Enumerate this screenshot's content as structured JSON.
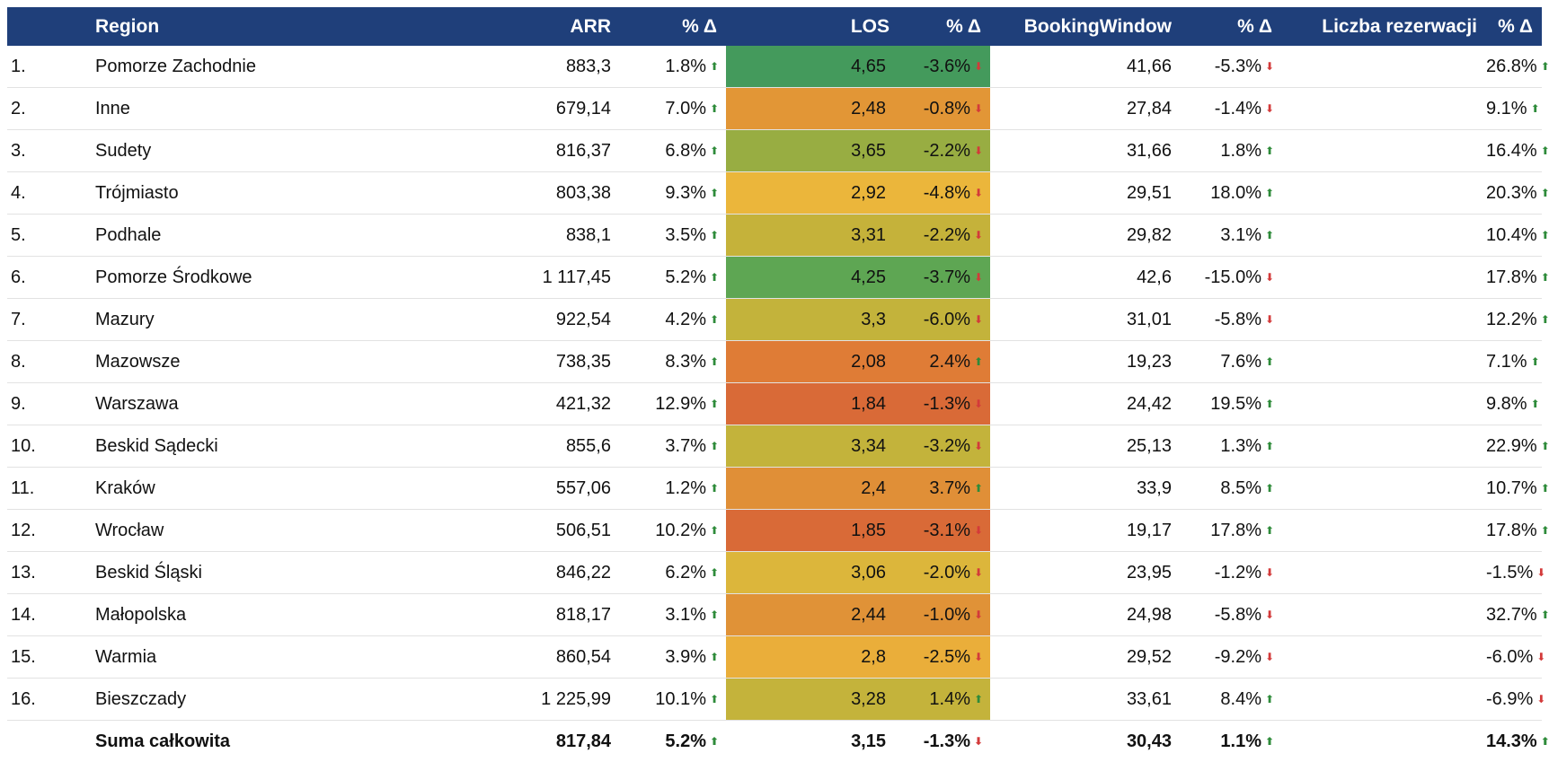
{
  "table": {
    "headers": {
      "index": "",
      "region": "Region",
      "arr": "ARR",
      "arr_delta": "% Δ",
      "los": "LOS",
      "los_delta": "% Δ",
      "booking_window": "BookingWindow",
      "bw_delta": "% Δ",
      "reservations": "Liczba rezerwacji",
      "res_delta": "% Δ"
    },
    "rows": [
      {
        "idx": "1.",
        "region": "Pomorze Zachodnie",
        "arr": "883,3",
        "arr_d": "1.8%",
        "arr_dir": "up",
        "los": "4,65",
        "los_d": "-3.6%",
        "los_dir": "down",
        "los_color": "#449a5c",
        "bw": "41,66",
        "bw_d": "-5.3%",
        "bw_dir": "down",
        "res_d": "26.8%",
        "res_dir": "up"
      },
      {
        "idx": "2.",
        "region": "Inne",
        "arr": "679,14",
        "arr_d": "7.0%",
        "arr_dir": "up",
        "los": "2,48",
        "los_d": "-0.8%",
        "los_dir": "down",
        "los_color": "#e29636",
        "bw": "27,84",
        "bw_d": "-1.4%",
        "bw_dir": "down",
        "res_d": "9.1%",
        "res_dir": "up"
      },
      {
        "idx": "3.",
        "region": "Sudety",
        "arr": "816,37",
        "arr_d": "6.8%",
        "arr_dir": "up",
        "los": "3,65",
        "los_d": "-2.2%",
        "los_dir": "down",
        "los_color": "#98ad42",
        "bw": "31,66",
        "bw_d": "1.8%",
        "bw_dir": "up",
        "res_d": "16.4%",
        "res_dir": "up"
      },
      {
        "idx": "4.",
        "region": "Trójmiasto",
        "arr": "803,38",
        "arr_d": "9.3%",
        "arr_dir": "up",
        "los": "2,92",
        "los_d": "-4.8%",
        "los_dir": "down",
        "los_color": "#ebb63b",
        "bw": "29,51",
        "bw_d": "18.0%",
        "bw_dir": "up",
        "res_d": "20.3%",
        "res_dir": "up"
      },
      {
        "idx": "5.",
        "region": "Podhale",
        "arr": "838,1",
        "arr_d": "3.5%",
        "arr_dir": "up",
        "los": "3,31",
        "los_d": "-2.2%",
        "los_dir": "down",
        "los_color": "#c5b23a",
        "bw": "29,82",
        "bw_d": "3.1%",
        "bw_dir": "up",
        "res_d": "10.4%",
        "res_dir": "up"
      },
      {
        "idx": "6.",
        "region": "Pomorze Środkowe",
        "arr": "1 117,45",
        "arr_d": "5.2%",
        "arr_dir": "up",
        "los": "4,25",
        "los_d": "-3.7%",
        "los_dir": "down",
        "los_color": "#5ea653",
        "bw": "42,6",
        "bw_d": "-15.0%",
        "bw_dir": "down",
        "res_d": "17.8%",
        "res_dir": "up"
      },
      {
        "idx": "7.",
        "region": "Mazury",
        "arr": "922,54",
        "arr_d": "4.2%",
        "arr_dir": "up",
        "los": "3,3",
        "los_d": "-6.0%",
        "los_dir": "down",
        "los_color": "#c3b33b",
        "bw": "31,01",
        "bw_d": "-5.8%",
        "bw_dir": "down",
        "res_d": "12.2%",
        "res_dir": "up"
      },
      {
        "idx": "8.",
        "region": "Mazowsze",
        "arr": "738,35",
        "arr_d": "8.3%",
        "arr_dir": "up",
        "los": "2,08",
        "los_d": "2.4%",
        "los_dir": "up",
        "los_color": "#df7c36",
        "bw": "19,23",
        "bw_d": "7.6%",
        "bw_dir": "up",
        "res_d": "7.1%",
        "res_dir": "up"
      },
      {
        "idx": "9.",
        "region": "Warszawa",
        "arr": "421,32",
        "arr_d": "12.9%",
        "arr_dir": "up",
        "los": "1,84",
        "los_d": "-1.3%",
        "los_dir": "down",
        "los_color": "#d96a37",
        "bw": "24,42",
        "bw_d": "19.5%",
        "bw_dir": "up",
        "res_d": "9.8%",
        "res_dir": "up"
      },
      {
        "idx": "10.",
        "region": "Beskid Sądecki",
        "arr": "855,6",
        "arr_d": "3.7%",
        "arr_dir": "up",
        "los": "3,34",
        "los_d": "-3.2%",
        "los_dir": "down",
        "los_color": "#c3b33b",
        "bw": "25,13",
        "bw_d": "1.3%",
        "bw_dir": "up",
        "res_d": "22.9%",
        "res_dir": "up"
      },
      {
        "idx": "11.",
        "region": "Kraków",
        "arr": "557,06",
        "arr_d": "1.2%",
        "arr_dir": "up",
        "los": "2,4",
        "los_d": "3.7%",
        "los_dir": "up",
        "los_color": "#e08f37",
        "bw": "33,9",
        "bw_d": "8.5%",
        "bw_dir": "up",
        "res_d": "10.7%",
        "res_dir": "up"
      },
      {
        "idx": "12.",
        "region": "Wrocław",
        "arr": "506,51",
        "arr_d": "10.2%",
        "arr_dir": "up",
        "los": "1,85",
        "los_d": "-3.1%",
        "los_dir": "down",
        "los_color": "#d96a37",
        "bw": "19,17",
        "bw_d": "17.8%",
        "bw_dir": "up",
        "res_d": "17.8%",
        "res_dir": "up"
      },
      {
        "idx": "13.",
        "region": "Beskid Śląski",
        "arr": "846,22",
        "arr_d": "6.2%",
        "arr_dir": "up",
        "los": "3,06",
        "los_d": "-2.0%",
        "los_dir": "down",
        "los_color": "#dcb63b",
        "bw": "23,95",
        "bw_d": "-1.2%",
        "bw_dir": "down",
        "res_d": "-1.5%",
        "res_dir": "down"
      },
      {
        "idx": "14.",
        "region": "Małopolska",
        "arr": "818,17",
        "arr_d": "3.1%",
        "arr_dir": "up",
        "los": "2,44",
        "los_d": "-1.0%",
        "los_dir": "down",
        "los_color": "#e09237",
        "bw": "24,98",
        "bw_d": "-5.8%",
        "bw_dir": "down",
        "res_d": "32.7%",
        "res_dir": "up"
      },
      {
        "idx": "15.",
        "region": "Warmia",
        "arr": "860,54",
        "arr_d": "3.9%",
        "arr_dir": "up",
        "los": "2,8",
        "los_d": "-2.5%",
        "los_dir": "down",
        "los_color": "#eaae3a",
        "bw": "29,52",
        "bw_d": "-9.2%",
        "bw_dir": "down",
        "res_d": "-6.0%",
        "res_dir": "down"
      },
      {
        "idx": "16.",
        "region": "Bieszczady",
        "arr": "1 225,99",
        "arr_d": "10.1%",
        "arr_dir": "up",
        "los": "3,28",
        "los_d": "1.4%",
        "los_dir": "up",
        "los_color": "#c4b33b",
        "bw": "33,61",
        "bw_d": "8.4%",
        "bw_dir": "up",
        "res_d": "-6.9%",
        "res_dir": "down"
      }
    ],
    "total": {
      "label": "Suma całkowita",
      "arr": "817,84",
      "arr_d": "5.2%",
      "arr_dir": "up",
      "los": "3,15",
      "los_d": "-1.3%",
      "los_dir": "down",
      "bw": "30,43",
      "bw_d": "1.1%",
      "bw_dir": "up",
      "res_d": "14.3%",
      "res_dir": "up"
    }
  },
  "icons": {
    "up": "arrow-up-icon",
    "down": "arrow-down-icon"
  },
  "colors": {
    "header_bg": "#1f3f7a",
    "up": "#2e8b3a",
    "down": "#d33a3a"
  }
}
